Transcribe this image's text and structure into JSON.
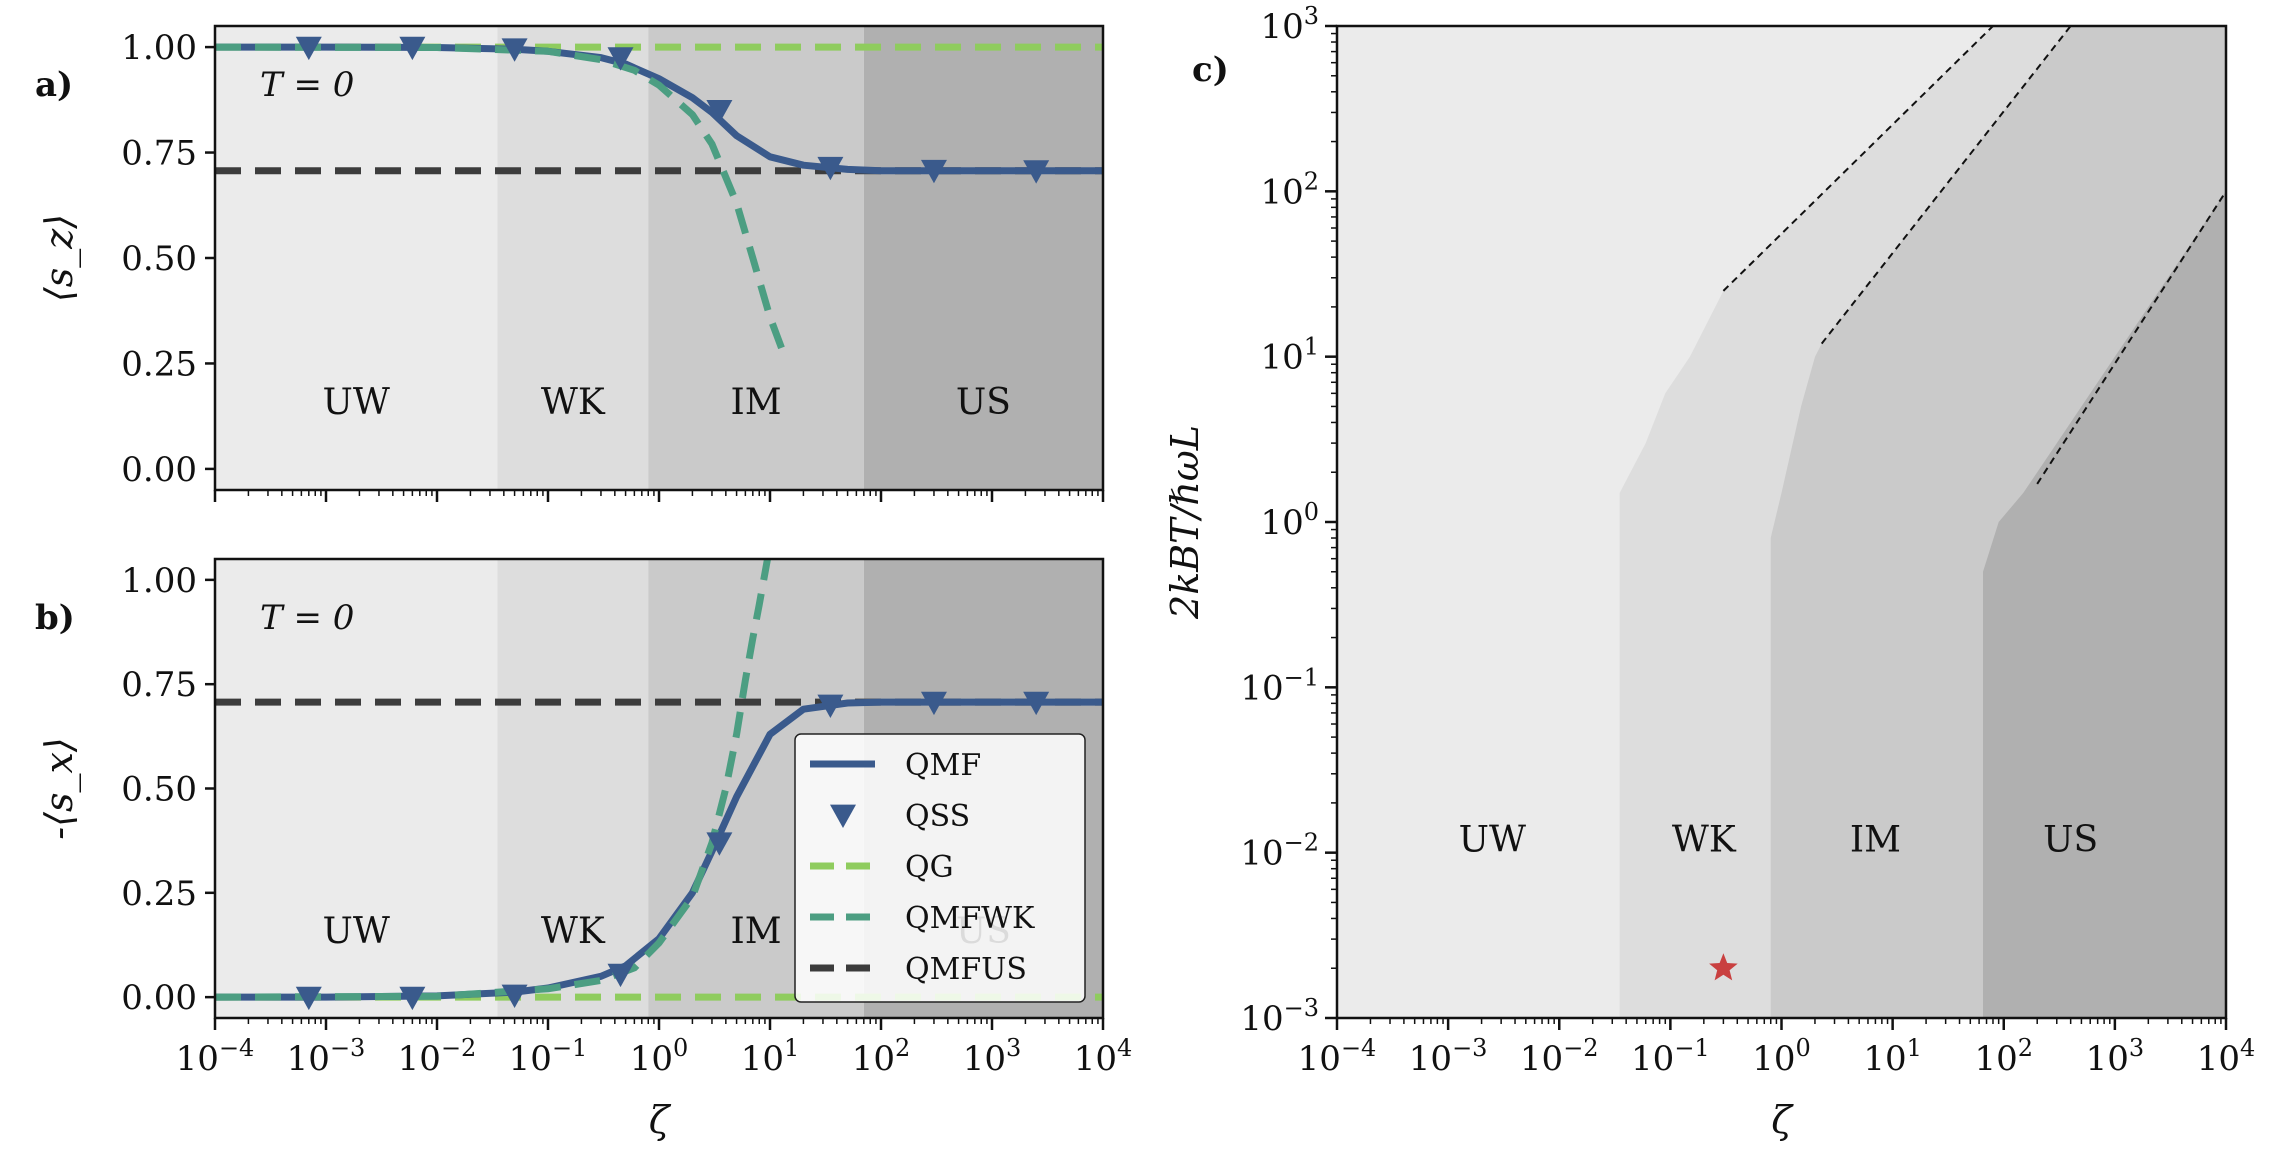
{
  "chart_data": [
    {
      "id": "a",
      "type": "line",
      "panel_label": "a)",
      "annotation": "T = 0",
      "ylabel": "⟨s_z⟩",
      "xlabel": "",
      "xscale": "log",
      "xlim": [
        0.0001,
        10000
      ],
      "ylim": [
        -0.05,
        1.05
      ],
      "yticks": [
        "0.00",
        "0.25",
        "0.50",
        "0.75",
        "1.00"
      ],
      "regions": [
        {
          "label": "UW",
          "from": 0.0001,
          "to": 0.035,
          "color": "#ebebeb"
        },
        {
          "label": "WK",
          "from": 0.035,
          "to": 0.8,
          "color": "#dddddd"
        },
        {
          "label": "IM",
          "from": 0.8,
          "to": 70,
          "color": "#cacaca"
        },
        {
          "label": "US",
          "from": 70,
          "to": 10000,
          "color": "#b0b0b0"
        }
      ],
      "series": [
        {
          "name": "QMF",
          "style": "solid",
          "color": "#3a5a8c",
          "x": [
            0.0001,
            0.001,
            0.01,
            0.05,
            0.1,
            0.3,
            0.5,
            1,
            2,
            3,
            5,
            10,
            20,
            50,
            100,
            1000,
            10000
          ],
          "y": [
            1.0,
            1.0,
            0.999,
            0.995,
            0.99,
            0.975,
            0.96,
            0.925,
            0.88,
            0.845,
            0.79,
            0.74,
            0.72,
            0.71,
            0.707,
            0.707,
            0.707
          ]
        },
        {
          "name": "QSS",
          "style": "marker",
          "color": "#3a5a8c",
          "x": [
            0.0007,
            0.006,
            0.05,
            0.45,
            3.5,
            35,
            300,
            2500
          ],
          "y": [
            1.0,
            1.0,
            0.996,
            0.975,
            0.85,
            0.715,
            0.708,
            0.707
          ]
        },
        {
          "name": "QG",
          "style": "dashed",
          "color": "#8fcc5e",
          "x": [
            0.0001,
            10000
          ],
          "y": [
            1.0,
            1.0
          ]
        },
        {
          "name": "QMFWK",
          "style": "dashed",
          "color": "#4c9e82",
          "x": [
            0.0001,
            0.01,
            0.1,
            0.3,
            0.6,
            1,
            2,
            3,
            5,
            7,
            10,
            13
          ],
          "y": [
            1.0,
            0.999,
            0.99,
            0.97,
            0.945,
            0.91,
            0.84,
            0.77,
            0.63,
            0.5,
            0.36,
            0.28
          ]
        },
        {
          "name": "QMFUS",
          "style": "dashed",
          "color": "#3c3c3c",
          "x": [
            0.0001,
            10000
          ],
          "y": [
            0.707,
            0.707
          ]
        }
      ]
    },
    {
      "id": "b",
      "type": "line",
      "panel_label": "b)",
      "annotation": "T = 0",
      "ylabel": "-⟨s_x⟩",
      "xlabel": "ζ",
      "xscale": "log",
      "xlim": [
        0.0001,
        10000
      ],
      "ylim": [
        -0.05,
        1.05
      ],
      "yticks": [
        "0.00",
        "0.25",
        "0.50",
        "0.75",
        "1.00"
      ],
      "xticks": [
        "10−4",
        "10−3",
        "10−2",
        "10−1",
        "100",
        "101",
        "102",
        "103",
        "104"
      ],
      "regions": [
        {
          "label": "UW",
          "from": 0.0001,
          "to": 0.035,
          "color": "#ebebeb"
        },
        {
          "label": "WK",
          "from": 0.035,
          "to": 0.8,
          "color": "#dddddd"
        },
        {
          "label": "IM",
          "from": 0.8,
          "to": 70,
          "color": "#cacaca"
        },
        {
          "label": "US",
          "from": 70,
          "to": 10000,
          "color": "#b0b0b0"
        }
      ],
      "series": [
        {
          "name": "QMF",
          "style": "solid",
          "color": "#3a5a8c",
          "x": [
            0.0001,
            0.001,
            0.01,
            0.05,
            0.1,
            0.3,
            0.5,
            1,
            2,
            3,
            5,
            10,
            20,
            50,
            100,
            1000,
            10000
          ],
          "y": [
            0.0,
            0.0,
            0.003,
            0.012,
            0.022,
            0.05,
            0.075,
            0.14,
            0.25,
            0.35,
            0.48,
            0.63,
            0.69,
            0.705,
            0.707,
            0.707,
            0.707
          ]
        },
        {
          "name": "QSS",
          "style": "marker",
          "color": "#3a5a8c",
          "x": [
            0.0007,
            0.006,
            0.05,
            0.45,
            3.5,
            35,
            300,
            2500
          ],
          "y": [
            0.0,
            0.0,
            0.005,
            0.055,
            0.37,
            0.7,
            0.707,
            0.707
          ]
        },
        {
          "name": "QG",
          "style": "dashed",
          "color": "#8fcc5e",
          "x": [
            0.0001,
            10000
          ],
          "y": [
            0.0,
            0.0
          ]
        },
        {
          "name": "QMFWK",
          "style": "dashed",
          "color": "#4c9e82",
          "x": [
            0.0001,
            0.01,
            0.1,
            0.3,
            0.6,
            1,
            2,
            3,
            4,
            5,
            6,
            7,
            8,
            9.5
          ],
          "y": [
            0.0,
            0.002,
            0.02,
            0.04,
            0.07,
            0.13,
            0.24,
            0.37,
            0.5,
            0.63,
            0.76,
            0.86,
            0.94,
            1.05
          ]
        },
        {
          "name": "QMFUS",
          "style": "dashed",
          "color": "#3c3c3c",
          "x": [
            0.0001,
            10000
          ],
          "y": [
            0.707,
            0.707
          ]
        }
      ],
      "legend": {
        "position": "lower-right",
        "entries": [
          "QMF",
          "QSS",
          "QG",
          "QMFWK",
          "QMFUS"
        ]
      }
    },
    {
      "id": "c",
      "type": "heatmap",
      "panel_label": "c)",
      "xlabel": "ζ",
      "ylabel": "2kBT/ℏωL",
      "xscale": "log",
      "yscale": "log",
      "xlim": [
        0.0001,
        10000
      ],
      "ylim": [
        0.001,
        1000
      ],
      "xticks": [
        "10−4",
        "10−3",
        "10−2",
        "10−1",
        "100",
        "101",
        "102",
        "103",
        "104"
      ],
      "yticks": [
        "10−3",
        "10−2",
        "10−1",
        "100",
        "101",
        "102",
        "103"
      ],
      "regions": [
        {
          "label": "UW",
          "color": "#ebebeb",
          "boundary": []
        },
        {
          "label": "WK",
          "color": "#dddddd",
          "boundary": [
            [
              0.035,
              0.001
            ],
            [
              0.035,
              1.5
            ],
            [
              0.06,
              3
            ],
            [
              0.09,
              6
            ],
            [
              0.15,
              10
            ],
            [
              0.3,
              25
            ],
            [
              80,
              1000
            ]
          ]
        },
        {
          "label": "IM",
          "color": "#cacaca",
          "boundary": [
            [
              0.8,
              0.001
            ],
            [
              0.8,
              0.8
            ],
            [
              1.0,
              1.5
            ],
            [
              1.5,
              5
            ],
            [
              2.0,
              10
            ],
            [
              2.3,
              12
            ],
            [
              400,
              1000
            ]
          ]
        },
        {
          "label": "US",
          "color": "#b0b0b0",
          "boundary": [
            [
              65,
              0.001
            ],
            [
              65,
              0.5
            ],
            [
              90,
              1.0
            ],
            [
              150,
              1.5
            ],
            [
              250,
              2.5
            ],
            [
              10000,
              100
            ]
          ]
        }
      ],
      "dashed_lines": [
        {
          "x": [
            0.3,
            80
          ],
          "y": [
            25,
            1000
          ]
        },
        {
          "x": [
            2.3,
            400
          ],
          "y": [
            12,
            1000
          ]
        },
        {
          "x": [
            200,
            10000
          ],
          "y": [
            1.7,
            100
          ]
        }
      ],
      "marker": {
        "symbol": "star",
        "x": 0.3,
        "y": 0.002,
        "color": "#c94040"
      },
      "region_label_y": 0.012,
      "region_label_x": {
        "UW": 0.0025,
        "WK": 0.2,
        "IM": 7,
        "US": 400
      }
    }
  ]
}
